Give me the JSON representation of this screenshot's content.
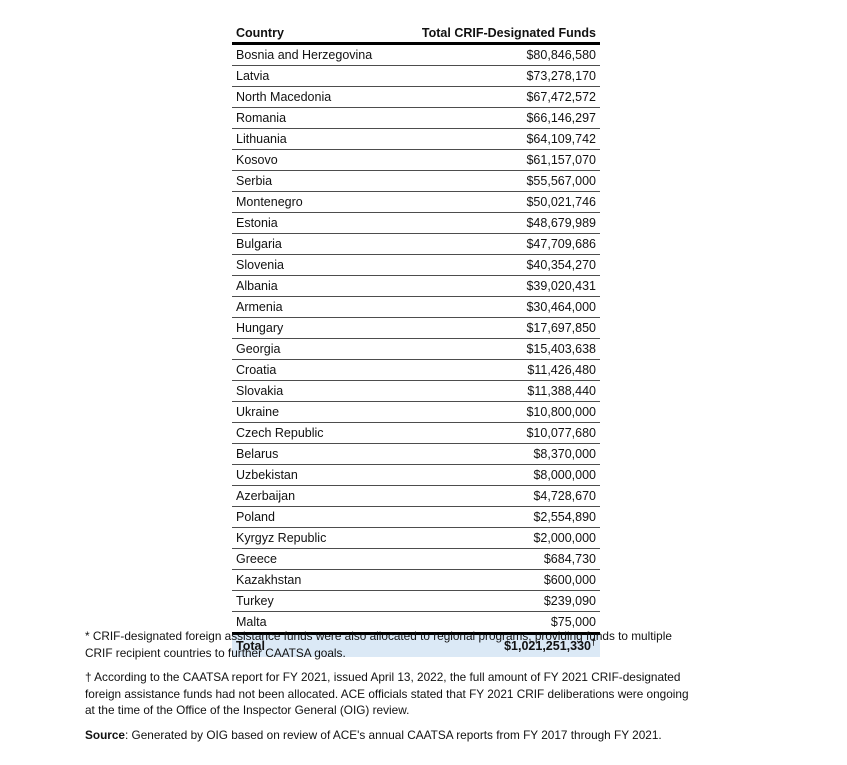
{
  "table": {
    "columns": [
      "Country",
      "Total CRIF-Designated Funds"
    ],
    "rows": [
      {
        "country": "Bosnia and Herzegovina",
        "amount": "$80,846,580"
      },
      {
        "country": "Latvia",
        "amount": "$73,278,170"
      },
      {
        "country": "North Macedonia",
        "amount": "$67,472,572"
      },
      {
        "country": "Romania",
        "amount": "$66,146,297"
      },
      {
        "country": "Lithuania",
        "amount": "$64,109,742"
      },
      {
        "country": "Kosovo",
        "amount": "$61,157,070"
      },
      {
        "country": "Serbia",
        "amount": "$55,567,000"
      },
      {
        "country": "Montenegro",
        "amount": "$50,021,746"
      },
      {
        "country": "Estonia",
        "amount": "$48,679,989"
      },
      {
        "country": "Bulgaria",
        "amount": "$47,709,686"
      },
      {
        "country": "Slovenia",
        "amount": "$40,354,270"
      },
      {
        "country": "Albania",
        "amount": "$39,020,431"
      },
      {
        "country": "Armenia",
        "amount": "$30,464,000"
      },
      {
        "country": "Hungary",
        "amount": "$17,697,850"
      },
      {
        "country": "Georgia",
        "amount": "$15,403,638"
      },
      {
        "country": "Croatia",
        "amount": "$11,426,480"
      },
      {
        "country": "Slovakia",
        "amount": "$11,388,440"
      },
      {
        "country": "Ukraine",
        "amount": "$10,800,000"
      },
      {
        "country": "Czech Republic",
        "amount": "$10,077,680"
      },
      {
        "country": "Belarus",
        "amount": "$8,370,000"
      },
      {
        "country": "Uzbekistan",
        "amount": "$8,000,000"
      },
      {
        "country": "Azerbaijan",
        "amount": "$4,728,670"
      },
      {
        "country": "Poland",
        "amount": "$2,554,890"
      },
      {
        "country": "Kyrgyz Republic",
        "amount": "$2,000,000"
      },
      {
        "country": "Greece",
        "amount": "$684,730"
      },
      {
        "country": "Kazakhstan",
        "amount": "$600,000"
      },
      {
        "country": "Turkey",
        "amount": "$239,090"
      },
      {
        "country": "Malta",
        "amount": "$75,000"
      }
    ],
    "total": {
      "label": "Total",
      "amount": "$1,021,251,330",
      "dagger": "†"
    }
  },
  "footnotes": [
    "* CRIF-designated foreign assistance funds were also allocated to regional programs, providing funds to multiple\nCRIF recipient countries to further CAATSA goals.",
    "† According to the CAATSA report for FY 2021, issued April 13, 2022, the full amount of FY 2021 CRIF-designated\nforeign assistance funds had not been allocated. ACE officials stated that FY 2021 CRIF deliberations were ongoing\nat the time of the Office of the Inspector General (OIG) review."
  ],
  "source": {
    "label": "Source",
    "text": ": Generated by OIG based on review of ACE's annual CAATSA reports from FY 2017 through FY 2021."
  },
  "colors": {
    "total_row_bg": "#dbe9f6",
    "heavy_border": "#000000",
    "row_line": "#4d4d4d"
  }
}
